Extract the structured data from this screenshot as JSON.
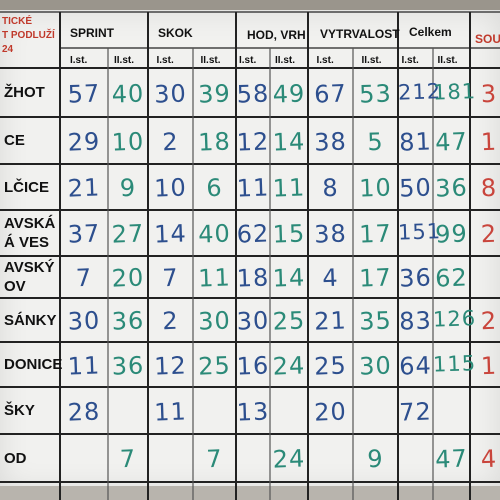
{
  "title": [
    "TICKÉ",
    "T PODLUŽÍ",
    "24"
  ],
  "groups": [
    {
      "label": "SPRINT"
    },
    {
      "label": "SKOK"
    },
    {
      "label": "HOD, VRH"
    },
    {
      "label": "VYTRVALOST"
    },
    {
      "label": "Celkem"
    },
    {
      "label": "SOU"
    }
  ],
  "subheaders": [
    "I.st.",
    "II.st.",
    "I.st.",
    "II.st.",
    "I.st.",
    "II.st.",
    "I.st.",
    "II.st.",
    "I.st.",
    "II.st."
  ],
  "rows": [
    {
      "name": [
        "ŽHOT"
      ],
      "cells": [
        "57",
        "40",
        "30",
        "39",
        "58",
        "49",
        "67",
        "53",
        "212",
        "181"
      ],
      "extra": "3"
    },
    {
      "name": [
        "CE"
      ],
      "cells": [
        "29",
        "10",
        "2",
        "18",
        "12",
        "14",
        "38",
        "5",
        "81",
        "47"
      ],
      "extra": "1"
    },
    {
      "name": [
        "LČICE"
      ],
      "cells": [
        "21",
        "9",
        "10",
        "6",
        "11",
        "11",
        "8",
        "10",
        "50",
        "36"
      ],
      "extra": "8"
    },
    {
      "name": [
        "AVSKÁ",
        "Á VES"
      ],
      "cells": [
        "37",
        "27",
        "14",
        "40",
        "62",
        "15",
        "38",
        "17",
        "151",
        "99"
      ],
      "extra": "2"
    },
    {
      "name": [
        "AVSKÝ",
        "OV"
      ],
      "cells": [
        "7",
        "20",
        "7",
        "11",
        "18",
        "14",
        "4",
        "17",
        "36",
        "62"
      ],
      "extra": ""
    },
    {
      "name": [
        "SÁNKY"
      ],
      "cells": [
        "30",
        "36",
        "2",
        "30",
        "30",
        "25",
        "21",
        "35",
        "83",
        "126"
      ],
      "extra": "2"
    },
    {
      "name": [
        "DONICE"
      ],
      "cells": [
        "11",
        "36",
        "12",
        "25",
        "16",
        "24",
        "25",
        "30",
        "64",
        "115"
      ],
      "extra": "1"
    },
    {
      "name": [
        "ŠKY"
      ],
      "cells": [
        "28",
        "",
        "11",
        "",
        "13",
        "",
        "20",
        "",
        "72",
        ""
      ],
      "extra": ""
    },
    {
      "name": [
        "OD"
      ],
      "cells": [
        "",
        "7",
        "",
        "7",
        "",
        "24",
        "",
        "9",
        "",
        "47"
      ],
      "extra": "4"
    }
  ],
  "colors": {
    "blue_ink": "#2d4f8e",
    "green_ink": "#2b8a78",
    "red_ink": "#c9453c"
  }
}
